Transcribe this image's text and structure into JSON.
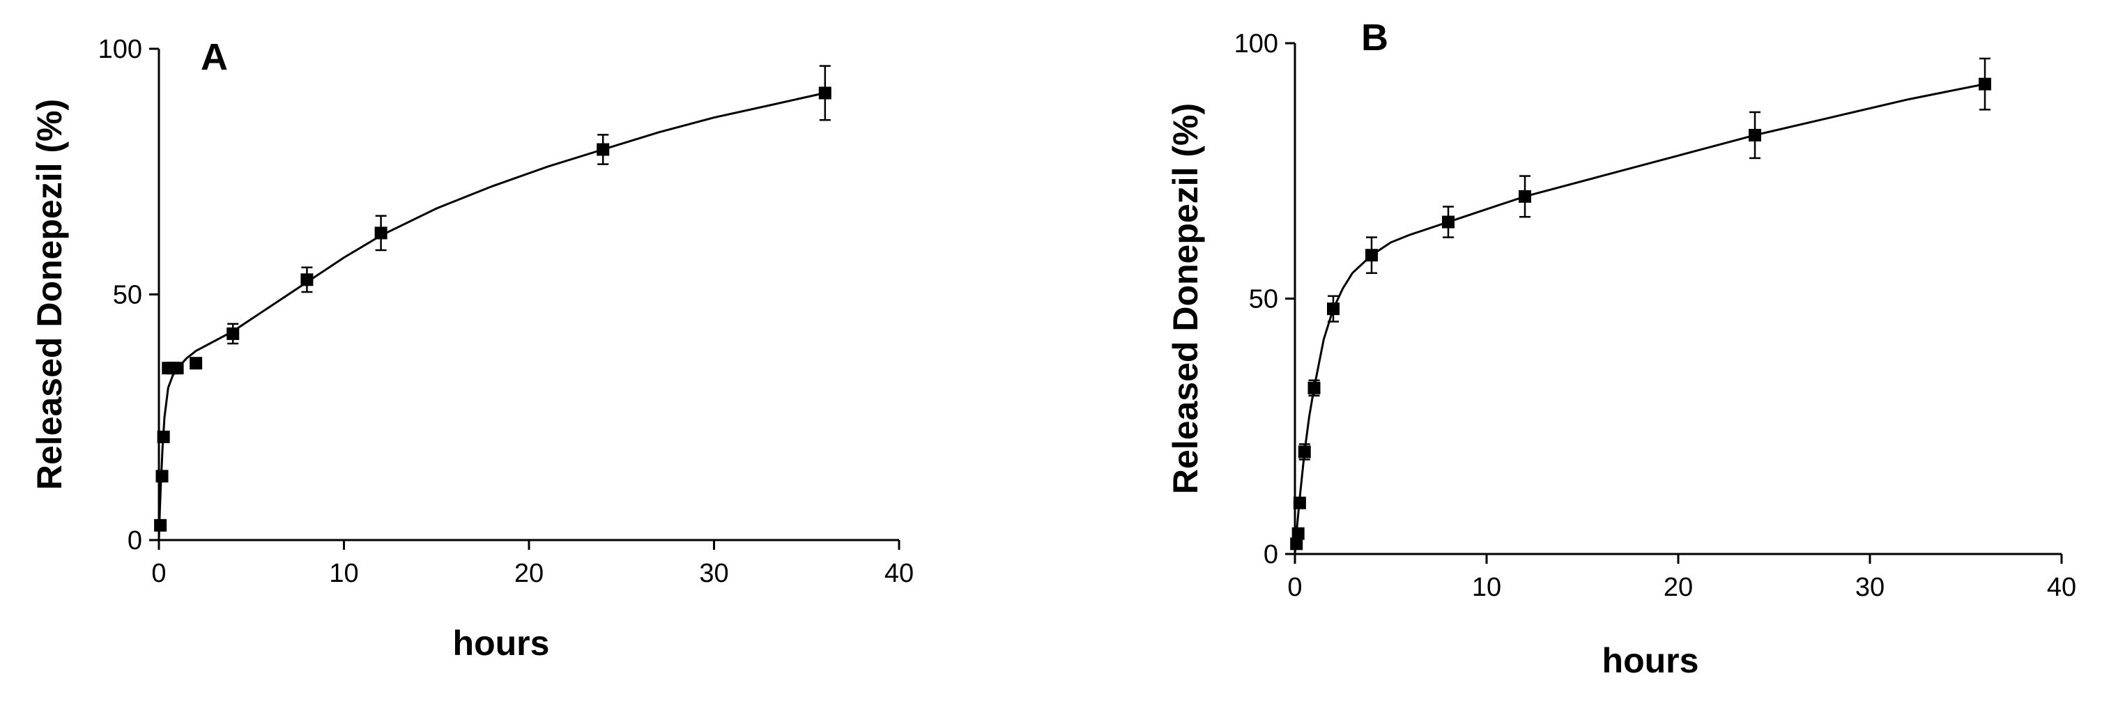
{
  "chart_data": [
    {
      "type": "scatter",
      "panel_label": "A",
      "xlabel": "hours",
      "ylabel": "Released Donepezil (%)",
      "xlim": [
        0,
        40
      ],
      "ylim": [
        0,
        100
      ],
      "x_ticks": [
        "0",
        "10",
        "20",
        "30",
        "40"
      ],
      "y_ticks": [
        "0",
        "50",
        "100"
      ],
      "grid": false,
      "marker": "square",
      "fit_curve": true,
      "series": [
        {
          "x": [
            0.08,
            0.17,
            0.25,
            0.5,
            0.75,
            1,
            2,
            4,
            8,
            12,
            24,
            36
          ],
          "y": [
            3,
            13,
            21,
            35,
            35,
            35,
            36,
            42,
            53,
            62.5,
            79.5,
            91
          ],
          "error": [
            0,
            0,
            0,
            0,
            0,
            0,
            1,
            2,
            2.5,
            3.5,
            3,
            5.5
          ]
        }
      ],
      "fit": {
        "x": [
          0,
          0.05,
          0.1,
          0.2,
          0.3,
          0.5,
          0.75,
          1,
          1.5,
          2,
          3,
          4,
          6,
          8,
          10,
          12,
          15,
          18,
          21,
          24,
          27,
          30,
          33,
          36
        ],
        "y": [
          0,
          6,
          11,
          19,
          25,
          31,
          33.5,
          35,
          37,
          38.5,
          40.5,
          42.5,
          47.5,
          52.5,
          57.5,
          62,
          67.5,
          72,
          76,
          79.5,
          83,
          86,
          88.5,
          91
        ]
      }
    },
    {
      "type": "scatter",
      "panel_label": "B",
      "xlabel": "hours",
      "ylabel": "Released Donepezil (%)",
      "xlim": [
        0,
        40
      ],
      "ylim": [
        0,
        100
      ],
      "x_ticks": [
        "0",
        "10",
        "20",
        "30",
        "40"
      ],
      "y_ticks": [
        "0",
        "50",
        "100"
      ],
      "grid": false,
      "marker": "square",
      "fit_curve": true,
      "series": [
        {
          "x": [
            0.08,
            0.17,
            0.25,
            0.5,
            1,
            2,
            4,
            8,
            12,
            24,
            36
          ],
          "y": [
            2,
            4,
            10,
            20,
            32.5,
            48,
            58.5,
            65,
            70,
            82,
            92
          ],
          "error": [
            0,
            0,
            0,
            1.5,
            1.5,
            2.5,
            3.5,
            3,
            4,
            4.5,
            5
          ]
        }
      ],
      "fit": {
        "x": [
          0,
          0.1,
          0.25,
          0.5,
          0.75,
          1,
          1.5,
          2,
          2.5,
          3,
          4,
          5,
          6,
          8,
          10,
          12,
          16,
          20,
          24,
          28,
          32,
          36
        ],
        "y": [
          0,
          5,
          11,
          20,
          27,
          32.5,
          42,
          48,
          52,
          55,
          58.5,
          61,
          62.5,
          65,
          67.5,
          70,
          74,
          78,
          82,
          85.5,
          89,
          92
        ]
      }
    }
  ]
}
